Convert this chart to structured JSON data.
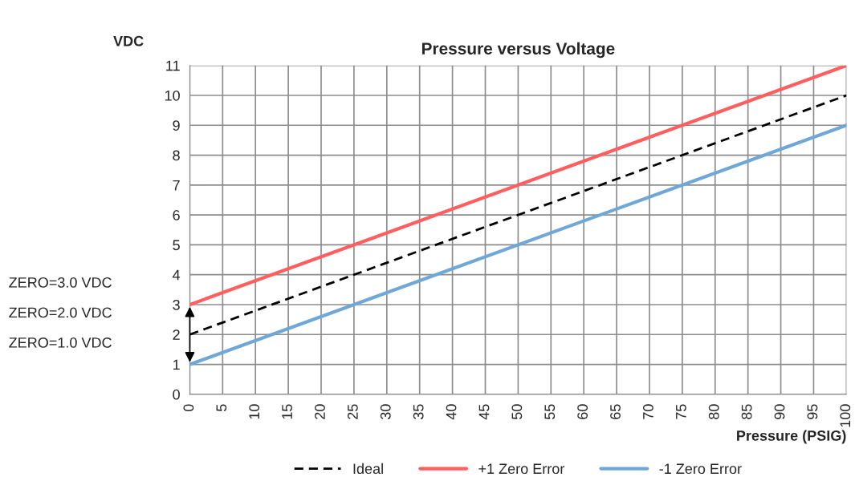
{
  "chart_data": {
    "type": "line",
    "title": "Pressure versus Voltage",
    "xlabel": "Pressure (PSIG)",
    "ylabel": "VDC",
    "x": [
      0,
      100
    ],
    "series": [
      {
        "name": "Ideal",
        "color": "#000000",
        "values": [
          2,
          10
        ],
        "line_style": "dashed"
      },
      {
        "name": "+1 Zero Error",
        "color": "#ff5f5f",
        "values": [
          3,
          11
        ],
        "line_style": "solid"
      },
      {
        "name": "-1 Zero Error",
        "color": "#6fa8d6",
        "values": [
          1,
          9
        ],
        "line_style": "solid"
      }
    ],
    "xlim": [
      0,
      100
    ],
    "xticks": [
      0,
      5,
      10,
      15,
      20,
      25,
      30,
      35,
      40,
      45,
      50,
      55,
      60,
      65,
      70,
      75,
      80,
      85,
      90,
      95,
      100
    ],
    "ylim": [
      0,
      11
    ],
    "yticks": [
      0,
      1,
      2,
      3,
      4,
      5,
      6,
      7,
      8,
      9,
      10,
      11
    ],
    "grid": true,
    "legend": "bottom",
    "annotations": [
      "ZERO=3.0 VDC",
      "ZERO=2.0 VDC",
      "ZERO=1.0 VDC"
    ]
  }
}
